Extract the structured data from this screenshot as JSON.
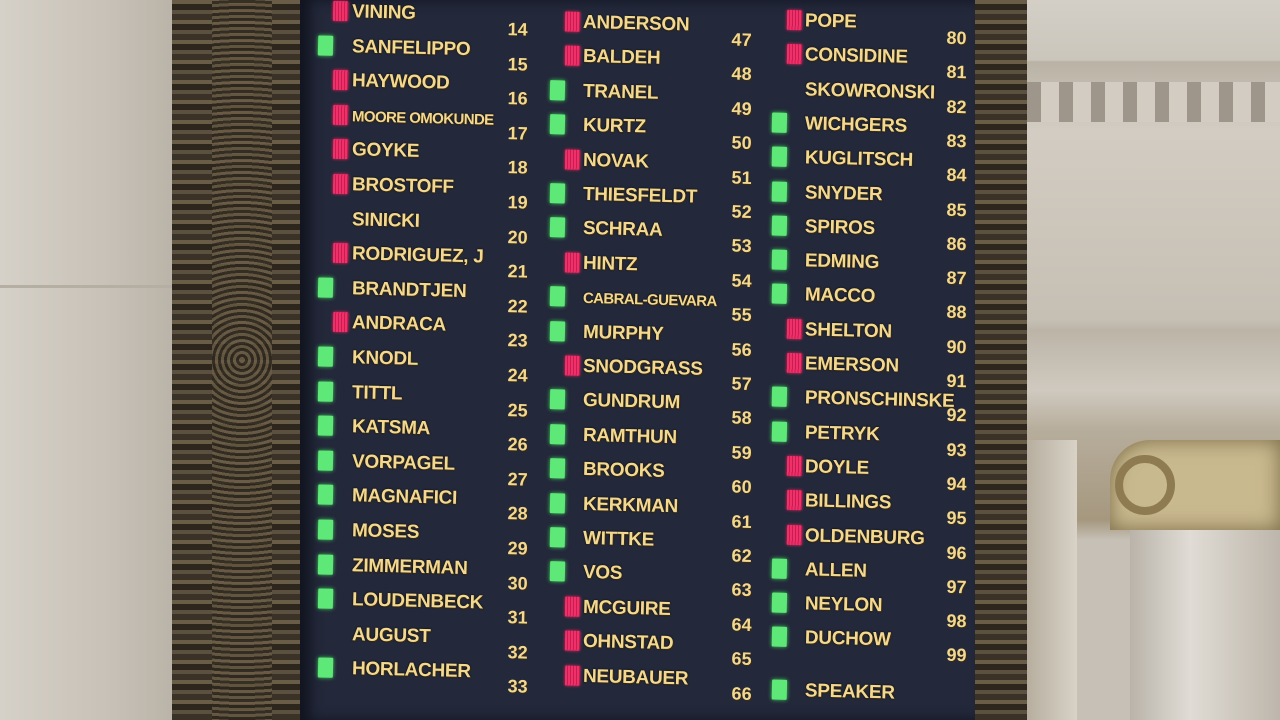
{
  "colors": {
    "aye": "#5ee878",
    "no": "#f0306a",
    "board": "#23283a",
    "text": "#f3d88f"
  },
  "board": {
    "columns": [
      {
        "rows": [
          {
            "name": "VINING",
            "seat": "14",
            "vote": "no"
          },
          {
            "name": "SANFELIPPO",
            "seat": "15",
            "vote": "aye"
          },
          {
            "name": "HAYWOOD",
            "seat": "16",
            "vote": "no"
          },
          {
            "name": "MOORE OMOKUNDE",
            "seat": "17",
            "vote": "no"
          },
          {
            "name": "GOYKE",
            "seat": "18",
            "vote": "no"
          },
          {
            "name": "BROSTOFF",
            "seat": "19",
            "vote": "no"
          },
          {
            "name": "SINICKI",
            "seat": "20",
            "vote": "none"
          },
          {
            "name": "RODRIGUEZ, J",
            "seat": "21",
            "vote": "no"
          },
          {
            "name": "BRANDTJEN",
            "seat": "22",
            "vote": "aye"
          },
          {
            "name": "ANDRACA",
            "seat": "23",
            "vote": "no"
          },
          {
            "name": "KNODL",
            "seat": "24",
            "vote": "aye"
          },
          {
            "name": "TITTL",
            "seat": "25",
            "vote": "aye"
          },
          {
            "name": "KATSMA",
            "seat": "26",
            "vote": "aye"
          },
          {
            "name": "VORPAGEL",
            "seat": "27",
            "vote": "aye"
          },
          {
            "name": "MAGNAFICI",
            "seat": "28",
            "vote": "aye"
          },
          {
            "name": "MOSES",
            "seat": "29",
            "vote": "aye"
          },
          {
            "name": "ZIMMERMAN",
            "seat": "30",
            "vote": "aye"
          },
          {
            "name": "LOUDENBECK",
            "seat": "31",
            "vote": "aye"
          },
          {
            "name": "AUGUST",
            "seat": "32",
            "vote": "none"
          },
          {
            "name": "HORLACHER",
            "seat": "33",
            "vote": "aye"
          }
        ]
      },
      {
        "rows": [
          {
            "name": "ANDERSON",
            "seat": "47",
            "vote": "no"
          },
          {
            "name": "BALDEH",
            "seat": "48",
            "vote": "no"
          },
          {
            "name": "TRANEL",
            "seat": "49",
            "vote": "aye"
          },
          {
            "name": "KURTZ",
            "seat": "50",
            "vote": "aye"
          },
          {
            "name": "NOVAK",
            "seat": "51",
            "vote": "no"
          },
          {
            "name": "THIESFELDT",
            "seat": "52",
            "vote": "aye"
          },
          {
            "name": "SCHRAA",
            "seat": "53",
            "vote": "aye"
          },
          {
            "name": "HINTZ",
            "seat": "54",
            "vote": "no"
          },
          {
            "name": "CABRAL-GUEVARA",
            "seat": "55",
            "vote": "aye"
          },
          {
            "name": "MURPHY",
            "seat": "56",
            "vote": "aye"
          },
          {
            "name": "SNODGRASS",
            "seat": "57",
            "vote": "no"
          },
          {
            "name": "GUNDRUM",
            "seat": "58",
            "vote": "aye"
          },
          {
            "name": "RAMTHUN",
            "seat": "59",
            "vote": "aye"
          },
          {
            "name": "BROOKS",
            "seat": "60",
            "vote": "aye"
          },
          {
            "name": "KERKMAN",
            "seat": "61",
            "vote": "aye"
          },
          {
            "name": "WITTKE",
            "seat": "62",
            "vote": "aye"
          },
          {
            "name": "VOS",
            "seat": "63",
            "vote": "aye"
          },
          {
            "name": "MCGUIRE",
            "seat": "64",
            "vote": "no"
          },
          {
            "name": "OHNSTAD",
            "seat": "65",
            "vote": "no"
          },
          {
            "name": "NEUBAUER",
            "seat": "66",
            "vote": "no"
          }
        ]
      },
      {
        "rows": [
          {
            "name": "POPE",
            "seat": "80",
            "vote": "no"
          },
          {
            "name": "CONSIDINE",
            "seat": "81",
            "vote": "no"
          },
          {
            "name": "SKOWRONSKI",
            "seat": "82",
            "vote": "none"
          },
          {
            "name": "WICHGERS",
            "seat": "83",
            "vote": "aye"
          },
          {
            "name": "KUGLITSCH",
            "seat": "84",
            "vote": "aye"
          },
          {
            "name": "SNYDER",
            "seat": "85",
            "vote": "aye"
          },
          {
            "name": "SPIROS",
            "seat": "86",
            "vote": "aye"
          },
          {
            "name": "EDMING",
            "seat": "87",
            "vote": "aye"
          },
          {
            "name": "MACCO",
            "seat": "88",
            "vote": "aye"
          },
          {
            "name": "SHELTON",
            "seat": "90",
            "vote": "no"
          },
          {
            "name": "EMERSON",
            "seat": "91",
            "vote": "no"
          },
          {
            "name": "PRONSCHINSKE",
            "seat": "92",
            "vote": "aye"
          },
          {
            "name": "PETRYK",
            "seat": "93",
            "vote": "aye"
          },
          {
            "name": "DOYLE",
            "seat": "94",
            "vote": "no"
          },
          {
            "name": "BILLINGS",
            "seat": "95",
            "vote": "no"
          },
          {
            "name": "OLDENBURG",
            "seat": "96",
            "vote": "no"
          },
          {
            "name": "ALLEN",
            "seat": "97",
            "vote": "aye"
          },
          {
            "name": "NEYLON",
            "seat": "98",
            "vote": "aye"
          },
          {
            "name": "DUCHOW",
            "seat": "99",
            "vote": "aye"
          },
          {
            "name": "SPEAKER",
            "seat": "",
            "vote": "aye"
          }
        ]
      }
    ]
  }
}
